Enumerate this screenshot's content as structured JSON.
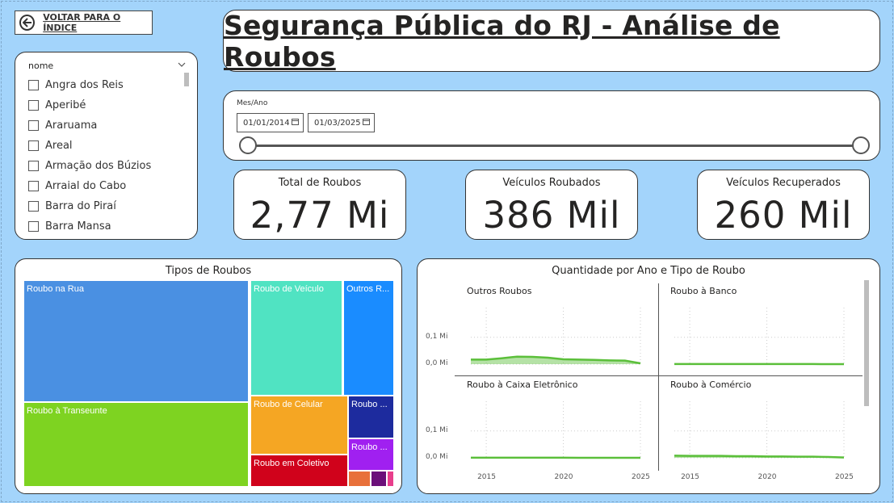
{
  "back_button": {
    "label": "VOLTAR PARA O ÍNDICE",
    "icon": "arrow-left-circle-icon"
  },
  "title": "Segurança Pública do RJ - Análise de Roubos",
  "slicer": {
    "title": "nome",
    "items": [
      {
        "label": "Angra dos Reis"
      },
      {
        "label": "Aperibé"
      },
      {
        "label": "Araruama"
      },
      {
        "label": "Areal"
      },
      {
        "label": "Armação dos Búzios"
      },
      {
        "label": "Arraial do Cabo"
      },
      {
        "label": "Barra do Piraí"
      },
      {
        "label": "Barra Mansa"
      }
    ]
  },
  "date_filter": {
    "label": "Mes/Ano",
    "start": "01/01/2014",
    "end": "01/03/2025"
  },
  "kpis": [
    {
      "label": "Total de Roubos",
      "value": "2,77 Mi"
    },
    {
      "label": "Veículos Roubados",
      "value": "386 Mil"
    },
    {
      "label": "Veículos Recuperados",
      "value": "260 Mil"
    }
  ],
  "treemap": {
    "title": "Tipos de Roubos",
    "tiles": [
      {
        "label": "Roubo na Rua",
        "color": "#4a90e2"
      },
      {
        "label": "Roubo à Transeunte",
        "color": "#7ed321"
      },
      {
        "label": "Roubo de Veículo",
        "color": "#50e3c2"
      },
      {
        "label": "Outros R...",
        "color": "#1a8cff"
      },
      {
        "label": "Roubo de Celular",
        "color": "#f5a623"
      },
      {
        "label": "Roubo ...",
        "color": "#1d2b9e"
      },
      {
        "label": "Roubo em Coletivo",
        "color": "#d0021b"
      },
      {
        "label": "Roubo ...",
        "color": "#a020f0"
      },
      {
        "label": "",
        "color": "#e8703a"
      },
      {
        "label": "",
        "color": "#6b0f7a"
      },
      {
        "label": "",
        "color": "#e83e8c"
      }
    ]
  },
  "small_multiples": {
    "title": "Quantidade por Ano e Tipo de Roubo",
    "y_ticks": [
      "0,1 Mi",
      "0,0 Mi"
    ],
    "x_ticks": [
      "2015",
      "2020",
      "2025"
    ],
    "line_color": "#5bbf3a",
    "panels": [
      {
        "name": "Outros Roubos"
      },
      {
        "name": "Roubo à Banco"
      },
      {
        "name": "Roubo à Caixa Eletrônico"
      },
      {
        "name": "Roubo à Comércio"
      }
    ]
  },
  "chart_data": {
    "type": "area",
    "title": "Quantidade por Ano e Tipo de Roubo",
    "x": [
      2014,
      2015,
      2016,
      2017,
      2018,
      2019,
      2020,
      2021,
      2022,
      2023,
      2024,
      2025
    ],
    "ylim": [
      0,
      0.12
    ],
    "yunit": "Mi",
    "series": [
      {
        "name": "Outros Roubos",
        "values": [
          0.017,
          0.017,
          0.022,
          0.028,
          0.027,
          0.024,
          0.018,
          0.017,
          0.016,
          0.014,
          0.013,
          0.003
        ]
      },
      {
        "name": "Roubo à Banco",
        "values": [
          0.0005,
          0.0005,
          0.0004,
          0.0004,
          0.0003,
          0.0003,
          0.0002,
          0.0002,
          0.0002,
          0.0002,
          0.0001,
          0.0001
        ]
      },
      {
        "name": "Roubo à Caixa Eletrônico",
        "values": [
          0.0003,
          0.0003,
          0.0003,
          0.0003,
          0.0002,
          0.0002,
          0.0002,
          0.0001,
          0.0001,
          0.0001,
          0.0001,
          0.0001
        ]
      },
      {
        "name": "Roubo à Comércio",
        "values": [
          0.008,
          0.007,
          0.007,
          0.007,
          0.006,
          0.006,
          0.005,
          0.005,
          0.004,
          0.004,
          0.003,
          0.001
        ]
      }
    ]
  }
}
